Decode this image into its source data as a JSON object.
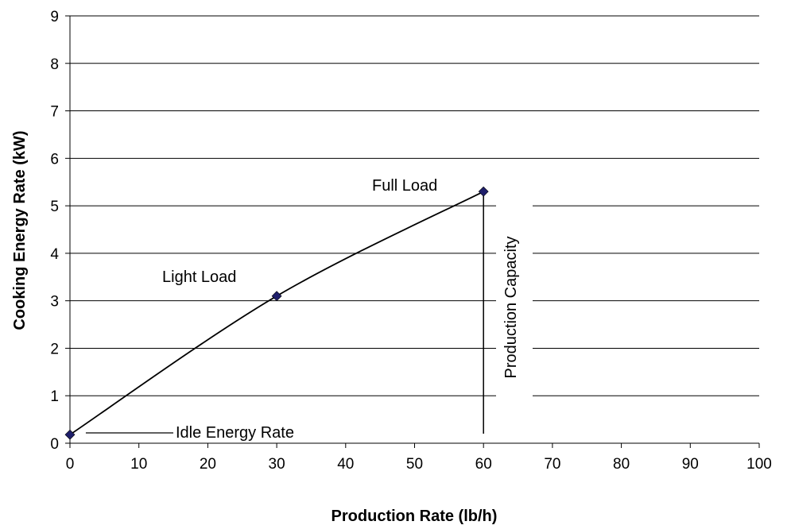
{
  "chart_data": {
    "type": "line",
    "title": "",
    "xlabel": "Production Rate (lb/h)",
    "ylabel": "Cooking Energy Rate (kW)",
    "xlim": [
      0,
      100
    ],
    "ylim": [
      0,
      9
    ],
    "x_ticks": [
      "0",
      "10",
      "20",
      "30",
      "40",
      "50",
      "60",
      "70",
      "80",
      "90",
      "100"
    ],
    "y_ticks": [
      "0",
      "1",
      "2",
      "3",
      "4",
      "5",
      "6",
      "7",
      "8",
      "9"
    ],
    "grid": "horizontal",
    "legend": "none",
    "series": [
      {
        "x": [
          0,
          30,
          60
        ],
        "y": [
          0.18,
          3.1,
          5.3
        ],
        "color": "#000000",
        "marker_color": "#1f1f6b",
        "marker": "diamond"
      }
    ],
    "annotations": {
      "idle": "Idle Energy Rate",
      "light": "Light Load",
      "full": "Full Load",
      "capacity": "Production Capacity"
    },
    "capacity_line_x": 60
  }
}
